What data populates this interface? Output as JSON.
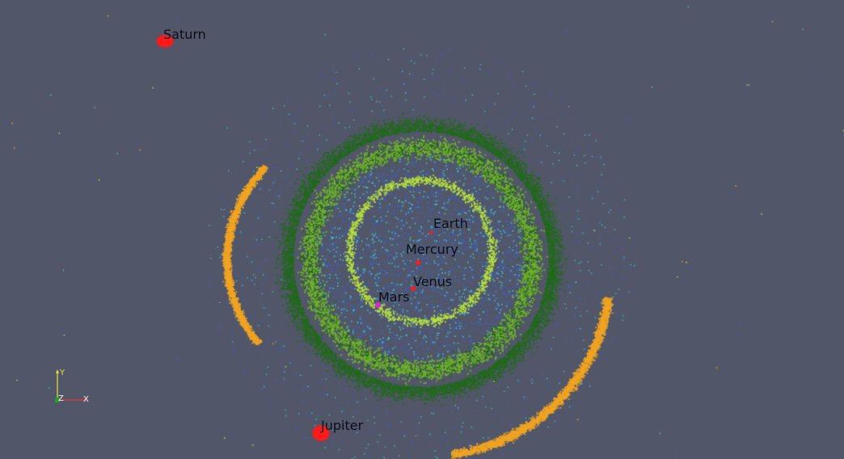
{
  "scene": {
    "background": "#525669",
    "colors": {
      "dark_green": "#1f6a18",
      "light_green": "#6fb32a",
      "lime": "#b8e23c",
      "blue": "#3a62c8",
      "cyan": "#3fc6d8",
      "orange": "#f0a422",
      "red": "#ff1a1a",
      "magenta": "#d02ad0"
    }
  },
  "planets": [
    {
      "name": "Saturn"
    },
    {
      "name": "Earth"
    },
    {
      "name": "Mercury"
    },
    {
      "name": "Venus"
    },
    {
      "name": "Mars"
    },
    {
      "name": "Jupiter"
    }
  ],
  "axes": {
    "x_label": "X",
    "y_label": "Y",
    "z_label": "Z"
  }
}
